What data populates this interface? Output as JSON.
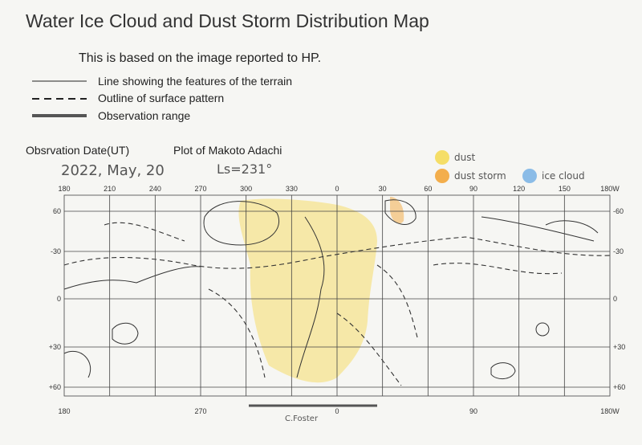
{
  "header": {
    "title": "Water Ice Cloud and Dust Storm Distribution Map",
    "subtitle": "This is based on the image reported to HP."
  },
  "legend": {
    "lines": [
      "Line showing the features of the terrain",
      "Outline of surface pattern",
      "Observation range"
    ]
  },
  "observation": {
    "date_label": "Obsrvation Date(UT)",
    "plotter": "Plot of Makoto Adachi",
    "date": "2022, May, 20",
    "ls": "Ls=231°"
  },
  "color_legend": [
    "dust",
    "dust storm",
    "ice cloud"
  ],
  "map": {
    "top_labels": [
      "180",
      "210",
      "240",
      "270",
      "300",
      "330",
      "0",
      "30",
      "60",
      "90",
      "120",
      "150",
      "180W"
    ],
    "left_labels": [
      "60",
      "-30",
      "0",
      "+30",
      "+60"
    ],
    "right_labels": [
      "-60",
      "-30",
      "0",
      "+30",
      "+60"
    ],
    "bottom_labels": [
      "180",
      "270",
      "0",
      "90",
      "180W"
    ],
    "credit": "C.Foster"
  }
}
